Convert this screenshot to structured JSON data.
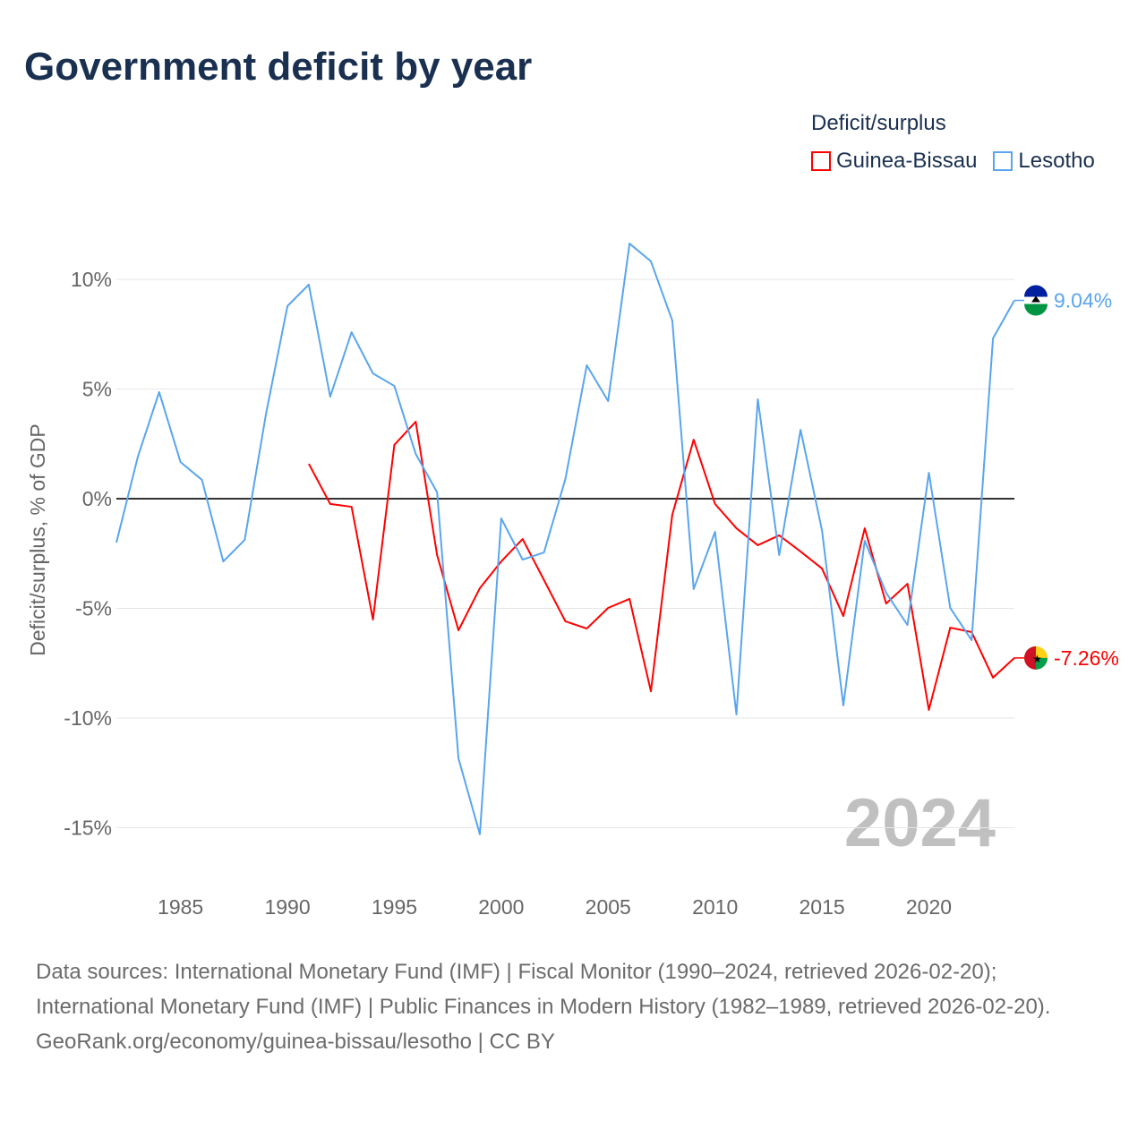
{
  "title": "Government deficit by year",
  "footer": {
    "sources": "Data sources: International Monetary Fund (IMF) | Fiscal Monitor (1990–2024, retrieved 2026-02-20); International Monetary Fund (IMF) | Public Finances in Modern History (1982–1989, retrieved 2026-02-20).",
    "credit": "GeoRank.org/economy/guinea-bissau/lesotho | CC BY"
  },
  "chart_data": {
    "type": "line",
    "title": "Government deficit by year",
    "ylabel": "Deficit/surplus, % of GDP",
    "xlabel": "",
    "legend_title": "Deficit/surplus",
    "legend_placement": "top-right",
    "year_watermark": "2024",
    "xlim": [
      1982,
      2024
    ],
    "ylim": [
      -17,
      13
    ],
    "x_ticks": [
      1985,
      1990,
      1995,
      2000,
      2005,
      2010,
      2015,
      2020
    ],
    "y_ticks": [
      10,
      5,
      0,
      -5,
      -10,
      -15
    ],
    "y_tick_labels": [
      "10%",
      "5%",
      "0%",
      "-5%",
      "-10%",
      "-15%"
    ],
    "series": [
      {
        "name": "Guinea-Bissau",
        "color": "#ff0000",
        "end_label": "-7.26%",
        "start_year": 1991,
        "values": [
          1.59,
          -0.24,
          -0.37,
          -5.51,
          2.45,
          3.51,
          -2.57,
          -6.0,
          -4.08,
          -2.86,
          -1.84,
          -3.71,
          -5.59,
          -5.92,
          -4.98,
          -4.57,
          -8.78,
          -0.73,
          2.69,
          -0.24,
          -1.35,
          -2.12,
          -1.67,
          -2.41,
          -3.18,
          -5.35,
          -1.35,
          -4.78,
          -3.88,
          -9.63,
          -5.88,
          -6.08,
          -8.16,
          -7.26
        ]
      },
      {
        "name": "Lesotho",
        "color": "#5aa5ee",
        "end_label": "9.04%",
        "start_year": 1982,
        "values": [
          -2.0,
          1.9,
          4.86,
          1.67,
          0.86,
          -2.86,
          -1.88,
          3.88,
          8.78,
          9.76,
          4.65,
          7.59,
          5.71,
          5.14,
          2.04,
          0.29,
          -11.84,
          -15.3,
          -0.9,
          -2.78,
          -2.45,
          0.9,
          6.08,
          4.45,
          11.63,
          10.82,
          8.12,
          -4.12,
          -1.51,
          -9.84,
          4.53,
          -2.57,
          3.14,
          -1.43,
          -9.43,
          -1.92,
          -4.29,
          -5.76,
          1.18,
          -4.98,
          -6.45,
          7.31,
          9.04
        ]
      }
    ]
  }
}
